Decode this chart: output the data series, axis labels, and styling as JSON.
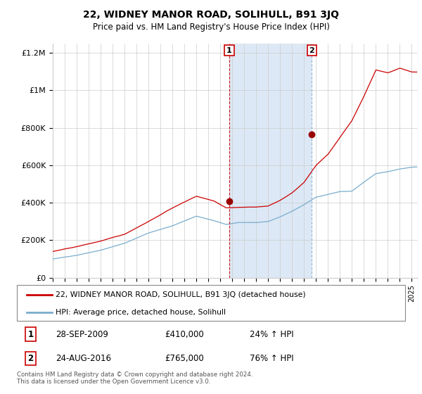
{
  "title": "22, WIDNEY MANOR ROAD, SOLIHULL, B91 3JQ",
  "subtitle": "Price paid vs. HM Land Registry's House Price Index (HPI)",
  "legend_line1": "22, WIDNEY MANOR ROAD, SOLIHULL, B91 3JQ (detached house)",
  "legend_line2": "HPI: Average price, detached house, Solihull",
  "sale1_label": "1",
  "sale1_date": "28-SEP-2009",
  "sale1_price": "£410,000",
  "sale1_hpi": "24% ↑ HPI",
  "sale1_year": 2009.75,
  "sale1_price_val": 410000,
  "sale2_label": "2",
  "sale2_date": "24-AUG-2016",
  "sale2_price": "£765,000",
  "sale2_hpi": "76% ↑ HPI",
  "sale2_year": 2016.65,
  "sale2_price_val": 765000,
  "ylim": [
    0,
    1250000
  ],
  "xlim_start": 1995,
  "xlim_end": 2025.5,
  "yticks": [
    0,
    200000,
    400000,
    600000,
    800000,
    1000000,
    1200000
  ],
  "ytick_labels": [
    "£0",
    "£200K",
    "£400K",
    "£600K",
    "£800K",
    "£1M",
    "£1.2M"
  ],
  "red_color": "#cc0000",
  "blue_color": "#7aadce",
  "shade_color": "#dce8f5",
  "background_color": "#ffffff",
  "footnote": "Contains HM Land Registry data © Crown copyright and database right 2024.\nThis data is licensed under the Open Government Licence v3.0."
}
